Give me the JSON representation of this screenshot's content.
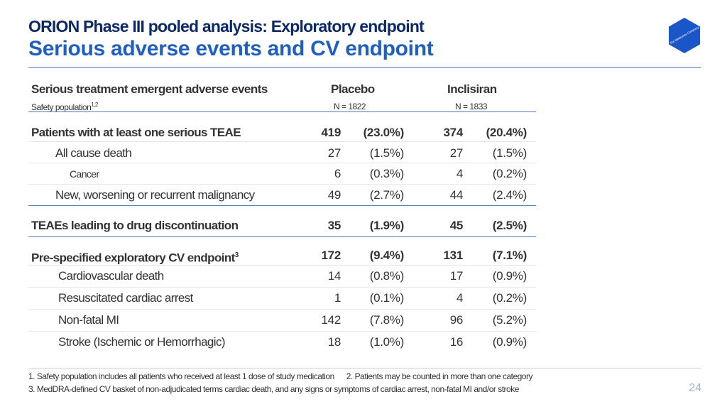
{
  "header": {
    "title_line1": "ORION Phase III pooled analysis: Exploratory endpoint",
    "title_line2": "Serious adverse events and CV endpoint",
    "logo_text": "The Medicines Company"
  },
  "table": {
    "col_header": "Serious treatment emergent adverse events",
    "col_sub": "Safety population",
    "col_sub_sup": "1,2",
    "placebo_label": "Placebo",
    "placebo_n": "N = 1822",
    "inclisiran_label": "Inclisiran",
    "inclisiran_n": "N = 1833",
    "rows": [
      {
        "label": "Patients with at least one serious TEAE",
        "sup": "",
        "pn": "419",
        "pp": "(23.0%)",
        "in": "374",
        "ip": "(20.4%)"
      },
      {
        "label": "All cause death",
        "sup": "",
        "pn": "27",
        "pp": "(1.5%)",
        "in": "27",
        "ip": "(1.5%)"
      },
      {
        "label": "Cancer",
        "sup": "",
        "pn": "6",
        "pp": "(0.3%)",
        "in": "4",
        "ip": "(0.2%)"
      },
      {
        "label": "New, worsening or recurrent malignancy",
        "sup": "",
        "pn": "49",
        "pp": "(2.7%)",
        "in": "44",
        "ip": "(2.4%)"
      },
      {
        "label": "TEAEs leading to drug discontinuation",
        "sup": "",
        "pn": "35",
        "pp": "(1.9%)",
        "in": "45",
        "ip": "(2.5%)"
      },
      {
        "label": "Pre-specified exploratory CV endpoint",
        "sup": "3",
        "pn": "172",
        "pp": "(9.4%)",
        "in": "131",
        "ip": "(7.1%)"
      },
      {
        "label": "Cardiovascular death",
        "sup": "",
        "pn": "14",
        "pp": "(0.8%)",
        "in": "17",
        "ip": "(0.9%)"
      },
      {
        "label": "Resuscitated cardiac arrest",
        "sup": "",
        "pn": "1",
        "pp": "(0.1%)",
        "in": "4",
        "ip": "(0.2%)"
      },
      {
        "label": "Non-fatal MI",
        "sup": "",
        "pn": "142",
        "pp": "(7.8%)",
        "in": "96",
        "ip": "(5.2%)"
      },
      {
        "label": "Stroke (Ischemic or Hemorrhagic)",
        "sup": "",
        "pn": "18",
        "pp": "(1.0%)",
        "in": "16",
        "ip": "(0.9%)"
      }
    ]
  },
  "footnotes": {
    "line1": "1. Safety population includes all patients who received at least 1 dose of study medication      2. Patients may be counted in more than one category",
    "line2": "3. MedDRA-defined CV basket of non-adjudicated terms cardiac death, and any signs or symptoms of cardiac arrest, non-fatal MI and/or stroke"
  },
  "page_number": "24",
  "colors": {
    "title_dark": "#0d2a66",
    "title_blue": "#1f5fbf",
    "logo_blue": "#1a56c8"
  }
}
